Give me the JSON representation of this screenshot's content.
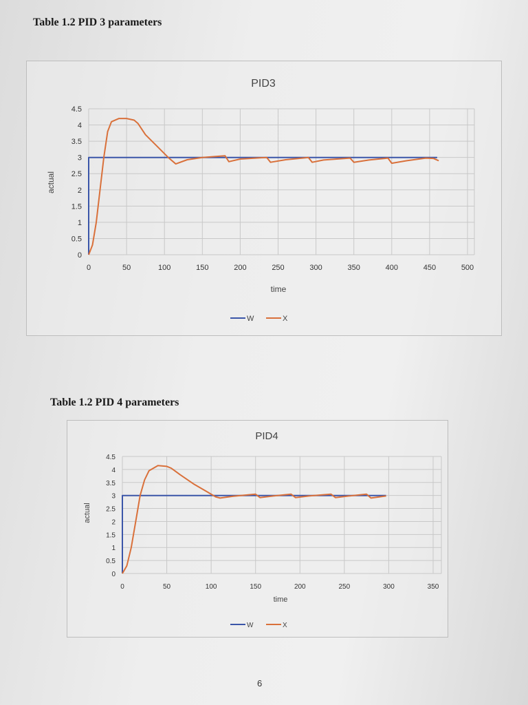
{
  "headings": [
    "Table 1.2 PID 3 parameters",
    "Table 1.2 PID 4 parameters"
  ],
  "page_number": "6",
  "colors": {
    "W": "#3a55a8",
    "X": "#d9703a",
    "grid": "#c8c8c8"
  },
  "chart_data": [
    {
      "type": "line",
      "title": "PID3",
      "xlabel": "time",
      "ylabel": "actual",
      "xlim": [
        0,
        500
      ],
      "ylim": [
        0,
        4.5
      ],
      "xticks": [
        "0",
        "50",
        "100",
        "150",
        "200",
        "250",
        "300",
        "350",
        "400",
        "450",
        "500"
      ],
      "yticks": [
        "0",
        "0.5",
        "1",
        "1.5",
        "2",
        "2.5",
        "3",
        "3.5",
        "4",
        "4.5"
      ],
      "grid": true,
      "legend": "bottom",
      "series": [
        {
          "name": "W",
          "x": [
            0,
            0,
            460
          ],
          "y": [
            0,
            3,
            3
          ]
        },
        {
          "name": "X",
          "x": [
            0,
            5,
            10,
            15,
            20,
            25,
            30,
            40,
            50,
            60,
            65,
            75,
            90,
            105,
            115,
            130,
            150,
            180,
            185,
            200,
            235,
            240,
            260,
            290,
            295,
            310,
            345,
            350,
            370,
            395,
            400,
            420,
            445,
            455,
            462
          ],
          "y": [
            0,
            0.3,
            1,
            2,
            3,
            3.8,
            4.1,
            4.2,
            4.2,
            4.15,
            4.05,
            3.7,
            3.35,
            3,
            2.8,
            2.93,
            3,
            3.05,
            2.87,
            2.95,
            3,
            2.85,
            2.93,
            3,
            2.85,
            2.92,
            2.98,
            2.85,
            2.92,
            2.98,
            2.82,
            2.9,
            2.98,
            2.97,
            2.9
          ]
        }
      ]
    },
    {
      "type": "line",
      "title": "PID4",
      "xlabel": "time",
      "ylabel": "actual",
      "xlim": [
        0,
        350
      ],
      "ylim": [
        0,
        4.5
      ],
      "xticks": [
        "0",
        "50",
        "100",
        "150",
        "200",
        "250",
        "300",
        "350"
      ],
      "yticks": [
        "0",
        "0.5",
        "1",
        "1.5",
        "2",
        "2.5",
        "3",
        "3.5",
        "4",
        "4.5"
      ],
      "grid": true,
      "legend": "bottom",
      "series": [
        {
          "name": "W",
          "x": [
            0,
            0,
            297
          ],
          "y": [
            0,
            3,
            3
          ]
        },
        {
          "name": "X",
          "x": [
            0,
            5,
            10,
            15,
            20,
            25,
            30,
            40,
            50,
            55,
            65,
            80,
            95,
            105,
            110,
            125,
            150,
            155,
            170,
            190,
            195,
            210,
            235,
            240,
            255,
            275,
            280,
            297
          ],
          "y": [
            0,
            0.3,
            1,
            2,
            3,
            3.6,
            3.95,
            4.15,
            4.12,
            4.05,
            3.8,
            3.45,
            3.15,
            2.95,
            2.9,
            2.97,
            3.05,
            2.92,
            2.98,
            3.05,
            2.92,
            2.98,
            3.05,
            2.92,
            2.98,
            3.05,
            2.9,
            2.98
          ]
        }
      ]
    }
  ]
}
